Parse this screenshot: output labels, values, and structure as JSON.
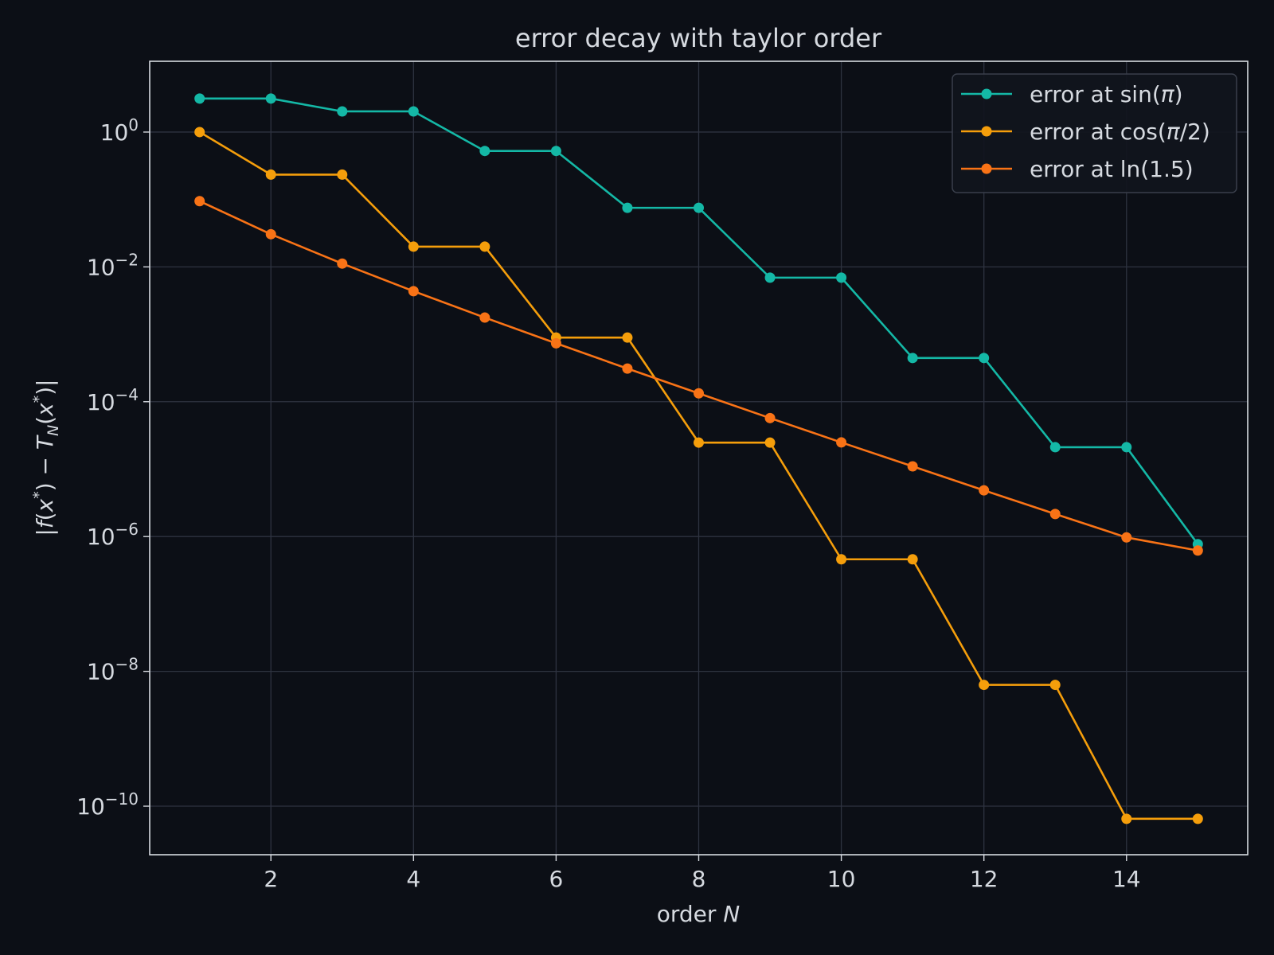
{
  "chart_data": {
    "type": "line",
    "title": "error decay with taylor order",
    "xlabel": "order N",
    "xlabel_parts": {
      "text": "order ",
      "italic": "N"
    },
    "ylabel": "|f(x*) − T_N(x*)|",
    "ylabel_parts": {
      "bar_open": "|",
      "f": "f",
      "paren_open_1": "(",
      "x1": "x",
      "star1": "*",
      "paren_close_1": ")",
      "minus": " − ",
      "T": "T",
      "N_sub": "N",
      "paren_open_2": "(",
      "x2": "x",
      "star2": "*",
      "paren_close_2": ")",
      "bar_close": "|"
    },
    "yscale": "log",
    "xlim": [
      0.3,
      15.7
    ],
    "ylim_log10": [
      -10.72,
      1.05
    ],
    "xticks": [
      2,
      4,
      6,
      8,
      10,
      12,
      14
    ],
    "xtick_labels": [
      "2",
      "4",
      "6",
      "8",
      "10",
      "12",
      "14"
    ],
    "yticks_exp": [
      0,
      -2,
      -4,
      -6,
      -8,
      -10
    ],
    "ytick_labels": [
      {
        "base": "10",
        "exp": "0"
      },
      {
        "base": "10",
        "exp": "−2"
      },
      {
        "base": "10",
        "exp": "−4"
      },
      {
        "base": "10",
        "exp": "−6"
      },
      {
        "base": "10",
        "exp": "−8"
      },
      {
        "base": "10",
        "exp": "−10"
      }
    ],
    "grid": true,
    "legend_position": "top-right",
    "x": [
      1,
      2,
      3,
      4,
      5,
      6,
      7,
      8,
      9,
      10,
      11,
      12,
      13,
      14,
      15
    ],
    "series": [
      {
        "name": "error at sin(π)",
        "name_parts": {
          "prefix": "error at sin(",
          "italic": "π",
          "suffix": ")"
        },
        "color": "#14b8a6",
        "values": [
          3.14159,
          3.14159,
          2.02612,
          2.02612,
          0.524044,
          0.524044,
          0.0752206,
          0.0752206,
          0.00692527,
          0.00692527,
          0.00044516,
          0.00044516,
          2.11426e-05,
          2.11426e-05,
          7.7e-07
        ]
      },
      {
        "name": "error at cos(π/2)",
        "name_parts": {
          "prefix": "error at cos(",
          "italic": "π",
          "suffix": "/2)"
        },
        "color": "#f59e0b",
        "values": [
          1.0,
          0.233701,
          0.233701,
          0.019969,
          0.019969,
          0.000894546,
          0.000894546,
          2.47373e-05,
          2.47373e-05,
          4.6e-07,
          4.6e-07,
          6.3e-09,
          6.3e-09,
          6.5e-11,
          6.5e-11
        ]
      },
      {
        "name": "error at ln(1.5)",
        "name_parts": {
          "prefix": "error at ln(1.5)",
          "italic": "",
          "suffix": ""
        },
        "color": "#f97316",
        "values": [
          0.0945,
          0.0305,
          0.0112,
          0.00436,
          0.00177,
          0.000735,
          0.00031,
          0.000133,
          5.72e-05,
          2.49e-05,
          1.1e-05,
          4.85e-06,
          2.16e-06,
          9.7e-07,
          6.2e-07
        ]
      }
    ]
  },
  "colors": {
    "background": "#0c0f16",
    "axes_edge": "#d6dae0",
    "grid": "#2e3340",
    "text": "#d6dae0",
    "legend_bg": "#11151d",
    "legend_edge": "#3a3f4b"
  }
}
